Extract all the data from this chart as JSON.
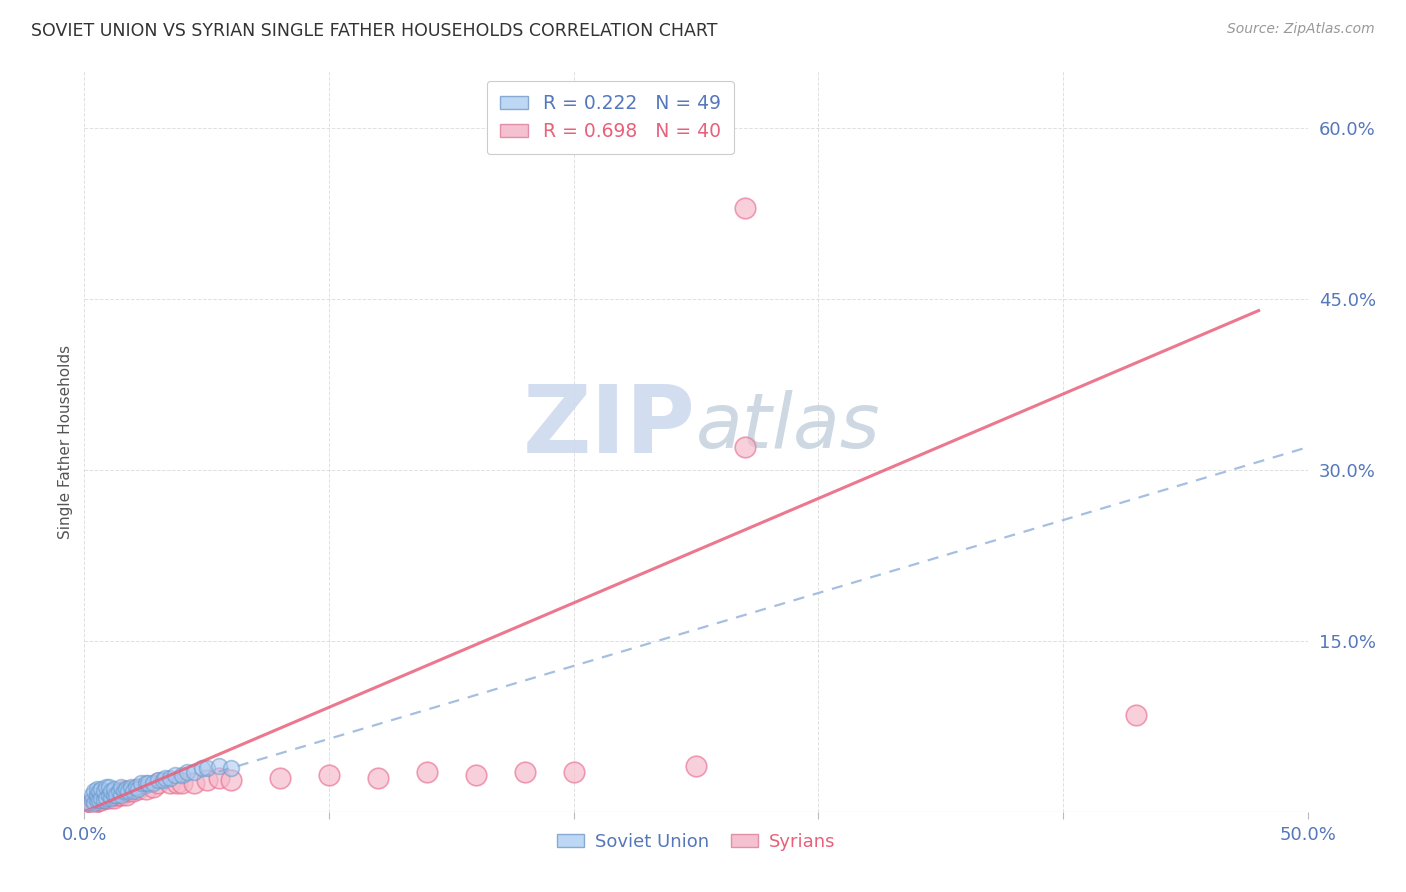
{
  "title": "SOVIET UNION VS SYRIAN SINGLE FATHER HOUSEHOLDS CORRELATION CHART",
  "source": "Source: ZipAtlas.com",
  "ylabel": "Single Father Households",
  "xlim": [
    0.0,
    0.5
  ],
  "ylim": [
    0.0,
    0.65
  ],
  "xticks": [
    0.0,
    0.1,
    0.2,
    0.3,
    0.4,
    0.5
  ],
  "yticks": [
    0.0,
    0.15,
    0.3,
    0.45,
    0.6
  ],
  "r_soviet": 0.222,
  "n_soviet": 49,
  "r_syrian": 0.698,
  "n_syrian": 40,
  "soviet_color": "#a8c8f0",
  "soviet_edge_color": "#6699cc",
  "syrian_color": "#f5b8c8",
  "syrian_edge_color": "#e87090",
  "soviet_line_color": "#88aad8",
  "syrian_line_color": "#e8607a",
  "tick_color": "#5577bb",
  "background_color": "#ffffff",
  "watermark_color": "#ccd8ee",
  "grid_color": "#cccccc",
  "title_color": "#333333",
  "source_color": "#999999",
  "ylabel_color": "#555555",
  "soviet_x": [
    0.002,
    0.003,
    0.003,
    0.004,
    0.004,
    0.005,
    0.005,
    0.005,
    0.006,
    0.006,
    0.007,
    0.007,
    0.008,
    0.008,
    0.009,
    0.009,
    0.01,
    0.01,
    0.011,
    0.011,
    0.012,
    0.012,
    0.013,
    0.014,
    0.015,
    0.015,
    0.016,
    0.017,
    0.018,
    0.019,
    0.02,
    0.021,
    0.022,
    0.023,
    0.025,
    0.026,
    0.028,
    0.03,
    0.032,
    0.033,
    0.035,
    0.037,
    0.04,
    0.042,
    0.045,
    0.048,
    0.05,
    0.055,
    0.06
  ],
  "soviet_y": [
    0.008,
    0.01,
    0.015,
    0.008,
    0.018,
    0.01,
    0.015,
    0.02,
    0.01,
    0.018,
    0.012,
    0.02,
    0.01,
    0.018,
    0.012,
    0.022,
    0.015,
    0.022,
    0.012,
    0.018,
    0.015,
    0.02,
    0.015,
    0.018,
    0.015,
    0.022,
    0.018,
    0.02,
    0.018,
    0.022,
    0.018,
    0.022,
    0.02,
    0.025,
    0.025,
    0.025,
    0.025,
    0.028,
    0.028,
    0.03,
    0.03,
    0.032,
    0.032,
    0.035,
    0.035,
    0.038,
    0.038,
    0.04,
    0.038
  ],
  "syrian_x": [
    0.002,
    0.003,
    0.004,
    0.005,
    0.006,
    0.007,
    0.008,
    0.009,
    0.01,
    0.011,
    0.012,
    0.013,
    0.014,
    0.015,
    0.016,
    0.017,
    0.018,
    0.02,
    0.022,
    0.025,
    0.028,
    0.03,
    0.035,
    0.038,
    0.04,
    0.045,
    0.05,
    0.055,
    0.06,
    0.08,
    0.1,
    0.12,
    0.14,
    0.16,
    0.18,
    0.2,
    0.25,
    0.27,
    0.43,
    0.27
  ],
  "syrian_y": [
    0.005,
    0.008,
    0.008,
    0.01,
    0.01,
    0.01,
    0.012,
    0.012,
    0.012,
    0.015,
    0.012,
    0.015,
    0.015,
    0.015,
    0.018,
    0.015,
    0.018,
    0.018,
    0.02,
    0.02,
    0.022,
    0.025,
    0.025,
    0.025,
    0.025,
    0.025,
    0.028,
    0.03,
    0.028,
    0.03,
    0.032,
    0.03,
    0.035,
    0.032,
    0.035,
    0.035,
    0.04,
    0.32,
    0.085,
    0.53
  ],
  "sov_line_x": [
    0.0,
    0.5
  ],
  "sov_line_y": [
    0.0,
    0.32
  ],
  "syr_line_x": [
    0.0,
    0.48
  ],
  "syr_line_y": [
    0.0,
    0.44
  ]
}
